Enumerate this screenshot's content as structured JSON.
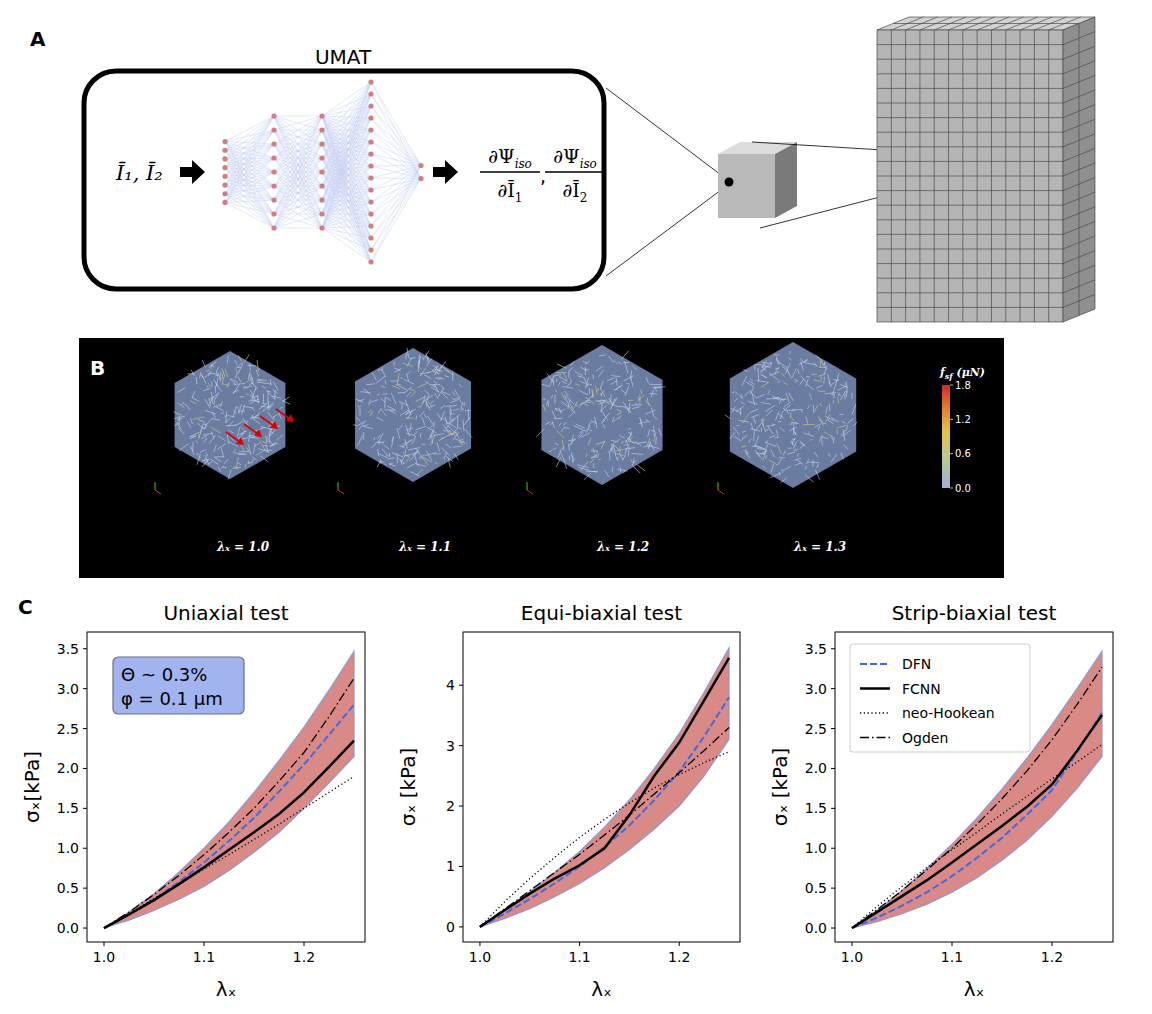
{
  "panel_a": {
    "label": "A",
    "title": "UMAT",
    "inputs": "Ī₁, Ī₂",
    "network": {
      "layers": [
        8,
        9,
        9,
        16,
        2
      ]
    },
    "separator": ",",
    "outputs": [
      {
        "numerator": "∂Ψ",
        "numerator_subscript": "iso",
        "denominator": "∂Ī",
        "denominator_subscript": "1"
      },
      {
        "numerator": "∂Ψ",
        "numerator_subscript": "iso",
        "denominator": "∂Ī",
        "denominator_subscript": "2"
      }
    ]
  },
  "panel_b": {
    "label": "B",
    "snapshots": [
      "λₓ = 1.0",
      "λₓ = 1.1",
      "λₓ = 1.2",
      "λₓ = 1.3"
    ],
    "colorbar": {
      "title": "f",
      "title_subscript": "sf",
      "title_unit": "(μN)",
      "range": [
        0,
        1.8
      ],
      "ticks": [
        1.8,
        1.2,
        0.6,
        {
          "value": 0,
          "label": "0.0"
        }
      ]
    }
  },
  "panel_c": {
    "label": "C"
  },
  "chart_data": [
    {
      "type": "line",
      "title": "Uniaxial test",
      "x_label": "λₓ",
      "y_label": "σₓ[kPa]",
      "xlim": [
        0.983,
        1.261
      ],
      "ylim": [
        -0.175,
        3.71
      ],
      "xticks": [
        {
          "value": 1,
          "label": "1.0"
        },
        1.1,
        1.2
      ],
      "yticks": [
        {
          "value": 0,
          "label": "0.0"
        },
        0.5,
        {
          "value": 1,
          "label": "1.0"
        },
        1.5,
        {
          "value": 2,
          "label": "2.0"
        },
        2.5,
        {
          "value": 3,
          "label": "3.0"
        },
        3.5
      ],
      "annotation": [
        "Θ ~ 0.3%",
        "φ = 0.1 μm"
      ],
      "x": [
        1.0,
        1.025,
        1.05,
        1.075,
        1.1,
        1.125,
        1.15,
        1.175,
        1.2,
        1.225,
        1.25
      ],
      "series": [
        {
          "name": "DFN",
          "color": "#4169e1",
          "line_style": "dashed",
          "values": [
            0,
            0.17,
            0.36,
            0.58,
            0.82,
            1.09,
            1.38,
            1.71,
            2.05,
            2.42,
            2.8
          ],
          "lower": [
            0,
            0.1,
            0.22,
            0.36,
            0.52,
            0.72,
            0.95,
            1.2,
            1.5,
            1.82,
            2.15
          ],
          "upper": [
            0,
            0.2,
            0.43,
            0.7,
            1.0,
            1.33,
            1.7,
            2.1,
            2.52,
            2.98,
            3.47
          ]
        },
        {
          "name": "FCNN",
          "color": "#000000",
          "line_style": "solid",
          "values": [
            0,
            0.17,
            0.35,
            0.55,
            0.76,
            0.98,
            1.2,
            1.43,
            1.7,
            2.02,
            2.35
          ]
        },
        {
          "name": "neo-Hookean",
          "color": "#000000",
          "line_style": "dotted",
          "values": [
            0,
            0.18,
            0.37,
            0.55,
            0.74,
            0.92,
            1.11,
            1.3,
            1.5,
            1.7,
            1.9
          ]
        },
        {
          "name": "Ogden",
          "color": "#000000",
          "line_style": "dashdot",
          "values": [
            0,
            0.2,
            0.42,
            0.66,
            0.92,
            1.2,
            1.5,
            1.84,
            2.2,
            2.65,
            3.13
          ]
        }
      ]
    },
    {
      "type": "line",
      "title": "Equi-biaxial test",
      "x_label": "λₓ",
      "y_label": "σₓ [kPa]",
      "xlim": [
        0.983,
        1.261
      ],
      "ylim": [
        -0.25,
        4.88
      ],
      "xticks": [
        {
          "value": 1,
          "label": "1.0"
        },
        1.1,
        1.2
      ],
      "yticks": [
        0,
        1,
        2,
        3,
        4
      ],
      "x": [
        1.0,
        1.025,
        1.05,
        1.075,
        1.1,
        1.125,
        1.15,
        1.175,
        1.2,
        1.225,
        1.25
      ],
      "series": [
        {
          "name": "DFN",
          "color": "#4169e1",
          "line_style": "dashed",
          "values": [
            0,
            0.22,
            0.46,
            0.72,
            1.0,
            1.32,
            1.68,
            2.1,
            2.57,
            3.15,
            3.8
          ],
          "lower": [
            0,
            0.14,
            0.3,
            0.5,
            0.72,
            0.98,
            1.28,
            1.62,
            2.0,
            2.5,
            3.1
          ],
          "upper": [
            0,
            0.28,
            0.58,
            0.9,
            1.25,
            1.65,
            2.1,
            2.62,
            3.2,
            3.88,
            4.62
          ]
        },
        {
          "name": "FCNN",
          "color": "#000000",
          "line_style": "solid",
          "values": [
            0,
            0.28,
            0.55,
            0.8,
            1.02,
            1.3,
            1.85,
            2.5,
            3.05,
            3.75,
            4.45
          ]
        },
        {
          "name": "neo-Hookean",
          "color": "#000000",
          "line_style": "dotted",
          "values": [
            0,
            0.42,
            0.8,
            1.15,
            1.48,
            1.78,
            2.05,
            2.3,
            2.52,
            2.72,
            2.9
          ]
        },
        {
          "name": "Ogden",
          "color": "#000000",
          "line_style": "dashdot",
          "values": [
            0,
            0.3,
            0.6,
            0.9,
            1.2,
            1.52,
            1.85,
            2.2,
            2.55,
            2.92,
            3.3
          ]
        }
      ]
    },
    {
      "type": "line",
      "title": "Strip-biaxial test",
      "x_label": "λₓ",
      "y_label": "σₓ [kPa]",
      "xlim": [
        0.983,
        1.261
      ],
      "ylim": [
        -0.175,
        3.71
      ],
      "legend": "upper left",
      "xticks": [
        {
          "value": 1,
          "label": "1.0"
        },
        1.1,
        1.2
      ],
      "yticks": [
        {
          "value": 0,
          "label": "0.0"
        },
        0.5,
        {
          "value": 1,
          "label": "1.0"
        },
        1.5,
        {
          "value": 2,
          "label": "2.0"
        },
        2.5,
        {
          "value": 3,
          "label": "3.0"
        },
        3.5
      ],
      "x": [
        1.0,
        1.025,
        1.05,
        1.075,
        1.1,
        1.125,
        1.15,
        1.175,
        1.2,
        1.225,
        1.25
      ],
      "series": [
        {
          "name": "DFN",
          "color": "#4169e1",
          "line_style": "dashed",
          "values": [
            0,
            0.13,
            0.28,
            0.45,
            0.65,
            0.88,
            1.13,
            1.42,
            1.73,
            2.2,
            2.7
          ],
          "lower": [
            0,
            0.08,
            0.18,
            0.3,
            0.45,
            0.63,
            0.85,
            1.1,
            1.4,
            1.75,
            2.15
          ],
          "upper": [
            0,
            0.22,
            0.47,
            0.75,
            1.05,
            1.38,
            1.74,
            2.13,
            2.55,
            3.0,
            3.47
          ]
        },
        {
          "name": "FCNN",
          "color": "#000000",
          "line_style": "solid",
          "values": [
            0,
            0.2,
            0.4,
            0.6,
            0.82,
            1.05,
            1.28,
            1.52,
            1.8,
            2.22,
            2.67
          ]
        },
        {
          "name": "neo-Hookean",
          "color": "#000000",
          "line_style": "dotted",
          "values": [
            0,
            0.27,
            0.52,
            0.76,
            0.98,
            1.2,
            1.43,
            1.65,
            1.87,
            2.08,
            2.3
          ]
        },
        {
          "name": "Ogden",
          "color": "#000000",
          "line_style": "dashdot",
          "values": [
            0,
            0.23,
            0.47,
            0.73,
            1.0,
            1.3,
            1.62,
            1.97,
            2.36,
            2.8,
            3.27
          ]
        }
      ]
    }
  ]
}
